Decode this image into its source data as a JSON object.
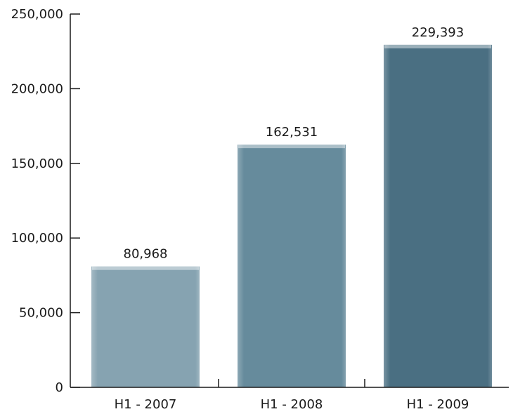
{
  "chart_data": {
    "type": "bar",
    "categories": [
      "H1 - 2007",
      "H1 - 2008",
      "H1 - 2009"
    ],
    "values": [
      80968,
      162531,
      229393
    ],
    "value_labels": [
      "80,968",
      "162,531",
      "229,393"
    ],
    "title": "",
    "xlabel": "",
    "ylabel": "",
    "ylim": [
      0,
      250000
    ],
    "yticks": [
      0,
      50000,
      100000,
      150000,
      200000,
      250000
    ],
    "ytick_labels": [
      "0",
      "50,000",
      "100,000",
      "150,000",
      "200,000",
      "250,000"
    ],
    "grid": false,
    "legend": "none",
    "bar_colors": [
      "#86a3b1",
      "#668b9c",
      "#4a6f82"
    ],
    "bar_highlight_color": "#ffffff"
  }
}
